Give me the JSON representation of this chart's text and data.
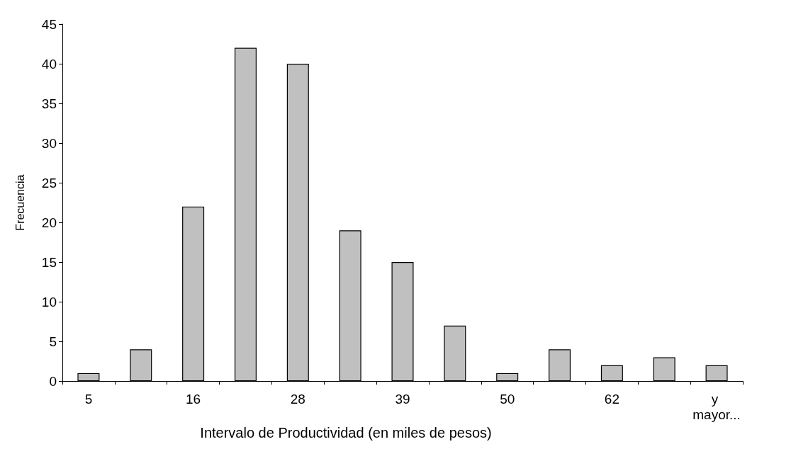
{
  "chart_data": {
    "type": "bar",
    "xlabel": "Intervalo de Productividad (en miles de pesos)",
    "ylabel": "Frecuencia",
    "categories": [
      "5",
      null,
      "16",
      null,
      "28",
      null,
      "39",
      null,
      "50",
      null,
      "62",
      null,
      "y mayor..."
    ],
    "values": [
      1,
      4,
      22,
      42,
      40,
      19,
      15,
      7,
      1,
      4,
      2,
      3,
      2
    ],
    "color": "#c0c0c0",
    "ylim": [
      0,
      45
    ],
    "yticks": [
      0,
      5,
      10,
      15,
      20,
      25,
      30,
      35,
      40,
      45
    ],
    "grid": false
  }
}
